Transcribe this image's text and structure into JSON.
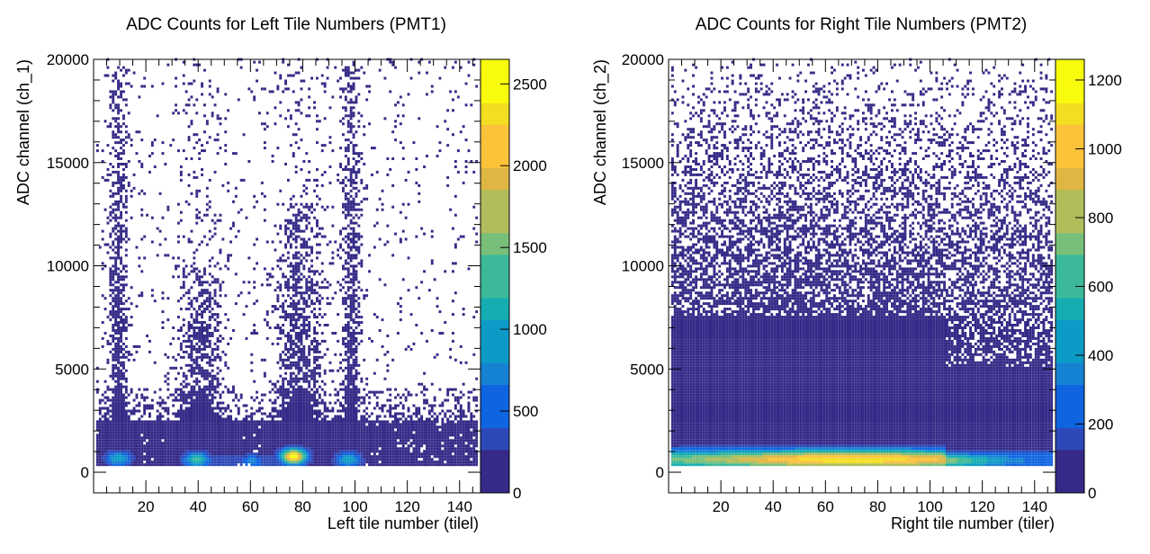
{
  "chart_data": [
    {
      "type": "heatmap",
      "title": "ADC Counts for Left Tile Numbers (PMT1)",
      "xlabel": "Left tile number (tilel)",
      "ylabel": "ADC channel (ch_1)",
      "xlim": [
        0,
        148
      ],
      "ylim": [
        -1000,
        20000
      ],
      "x_ticks": [
        20,
        40,
        60,
        80,
        100,
        120,
        140
      ],
      "y_ticks": [
        0,
        5000,
        10000,
        15000,
        20000
      ],
      "z_range": [
        0,
        2650
      ],
      "z_ticks": [
        0,
        500,
        1000,
        1500,
        2000,
        2500
      ],
      "baseline_adc": 300,
      "hotspots": [
        {
          "tile": 9,
          "adc": 600,
          "count": 1000
        },
        {
          "tile": 39,
          "adc": 550,
          "count": 1300
        },
        {
          "tile": 60,
          "adc": 450,
          "count": 700
        },
        {
          "tile": 76,
          "adc": 700,
          "count": 2600
        },
        {
          "tile": 97,
          "adc": 550,
          "count": 1000
        }
      ],
      "vertical_bands": [
        {
          "tile": 9,
          "upper_adc": 20000
        },
        {
          "tile": 40,
          "upper_adc": 10000
        },
        {
          "tile": 78,
          "upper_adc": 13000
        },
        {
          "tile": 98,
          "upper_adc": 20000
        }
      ]
    },
    {
      "type": "heatmap",
      "title": "ADC Counts for Right Tile Numbers (PMT2)",
      "xlabel": "Right tile number (tiler)",
      "ylabel": "ADC channel (ch_2)",
      "xlim": [
        0,
        148
      ],
      "ylim": [
        -1000,
        20000
      ],
      "x_ticks": [
        20,
        40,
        60,
        80,
        100,
        120,
        140
      ],
      "y_ticks": [
        0,
        5000,
        10000,
        15000,
        20000
      ],
      "z_range": [
        0,
        1260
      ],
      "z_ticks": [
        0,
        200,
        400,
        600,
        800,
        1000,
        1200
      ],
      "baseline_adc": 300,
      "hotspots": [
        {
          "tile": 70,
          "adc": 500,
          "count": 1150
        }
      ],
      "tile_range": [
        1,
        146
      ],
      "step_edge_tile": 106
    }
  ],
  "palette": [
    "#352a87",
    "#2d49b8",
    "#0f64e0",
    "#1582d3",
    "#0b9bc6",
    "#15adb2",
    "#3bb99a",
    "#78bf7a",
    "#b1bd5b",
    "#dfb644",
    "#fcc33a",
    "#f3de22",
    "#f9fb0e"
  ]
}
